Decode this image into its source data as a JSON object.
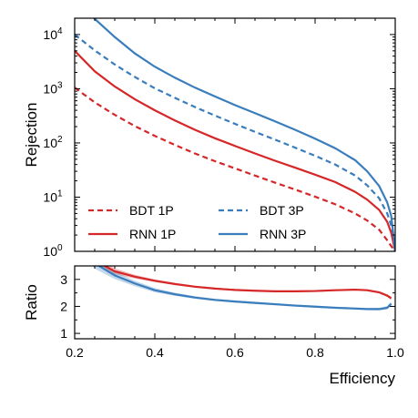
{
  "colors": {
    "1P": "#d62728",
    "3P": "#3a7dbd"
  },
  "chart_data": [
    {
      "type": "line",
      "role": "rejection",
      "ylabel": "Rejection",
      "yscale": "log",
      "xlim": [
        0.2,
        1.0
      ],
      "ylim": [
        1,
        20000
      ],
      "yticks": [
        {
          "value": 1,
          "base": "10",
          "exp": "0"
        },
        {
          "value": 10,
          "base": "10",
          "exp": "1"
        },
        {
          "value": 100,
          "base": "10",
          "exp": "2"
        },
        {
          "value": 1000,
          "base": "10",
          "exp": "3"
        },
        {
          "value": 10000,
          "base": "10",
          "exp": "4"
        }
      ],
      "legend": {
        "placement": "lower-left",
        "entries": [
          {
            "label": "BDT 1P",
            "series": "BDT 1P"
          },
          {
            "label": "BDT 3P",
            "series": "BDT 3P"
          },
          {
            "label": "RNN 1P",
            "series": "RNN 1P"
          },
          {
            "label": "RNN 3P",
            "series": "RNN 3P"
          }
        ]
      },
      "series": [
        {
          "name": "BDT 1P",
          "style": "dashed",
          "color_key": "1P",
          "x": [
            0.2,
            0.25,
            0.3,
            0.35,
            0.4,
            0.45,
            0.5,
            0.55,
            0.6,
            0.65,
            0.7,
            0.75,
            0.8,
            0.85,
            0.9,
            0.93,
            0.96,
            0.98,
            0.99,
            1.0
          ],
          "y": [
            1050,
            560,
            330,
            205,
            135,
            92,
            64,
            46,
            34,
            25,
            18.5,
            13.8,
            10.2,
            7.4,
            5.0,
            3.7,
            2.5,
            1.6,
            1.25,
            1.0
          ]
        },
        {
          "name": "BDT 3P",
          "style": "dashed",
          "color_key": "3P",
          "x": [
            0.2,
            0.25,
            0.3,
            0.35,
            0.4,
            0.45,
            0.5,
            0.55,
            0.6,
            0.65,
            0.7,
            0.75,
            0.8,
            0.85,
            0.9,
            0.93,
            0.96,
            0.98,
            0.99,
            1.0
          ],
          "y": [
            10000,
            5100,
            2800,
            1650,
            1020,
            680,
            460,
            320,
            225,
            160,
            115,
            82,
            58,
            40,
            25,
            16.5,
            9.5,
            5.0,
            3.0,
            1.0
          ]
        },
        {
          "name": "RNN 1P",
          "style": "solid",
          "color_key": "1P",
          "x": [
            0.2,
            0.25,
            0.3,
            0.35,
            0.4,
            0.45,
            0.5,
            0.55,
            0.6,
            0.65,
            0.7,
            0.75,
            0.8,
            0.85,
            0.9,
            0.93,
            0.96,
            0.98,
            0.99,
            1.0
          ],
          "y": [
            5000,
            2100,
            1100,
            640,
            400,
            260,
            175,
            122,
            88,
            64,
            47,
            35,
            26,
            19,
            12.5,
            9.0,
            5.8,
            3.5,
            2.2,
            1.0
          ]
        },
        {
          "name": "RNN 3P",
          "style": "solid",
          "color_key": "3P",
          "x": [
            0.2,
            0.25,
            0.3,
            0.35,
            0.4,
            0.45,
            0.5,
            0.55,
            0.6,
            0.65,
            0.7,
            0.75,
            0.8,
            0.85,
            0.9,
            0.93,
            0.96,
            0.98,
            0.99,
            1.0
          ],
          "y": [
            45000,
            19500,
            9000,
            4500,
            2550,
            1600,
            1050,
            720,
            500,
            355,
            250,
            175,
            120,
            80,
            48,
            30,
            16,
            8,
            4.5,
            1.0
          ]
        }
      ]
    },
    {
      "type": "line",
      "role": "ratio",
      "ylabel": "Ratio",
      "xlabel": "Efficiency",
      "xlim": [
        0.2,
        1.0
      ],
      "ylim": [
        0.8,
        3.5
      ],
      "xticks": [
        "0.2",
        "0.4",
        "0.6",
        "0.8",
        "1.0"
      ],
      "yticks": [
        "1",
        "2",
        "3"
      ],
      "series": [
        {
          "name": "1P",
          "color_key": "1P",
          "x": [
            0.2,
            0.25,
            0.3,
            0.35,
            0.4,
            0.45,
            0.5,
            0.55,
            0.6,
            0.65,
            0.7,
            0.75,
            0.8,
            0.85,
            0.9,
            0.93,
            0.96,
            0.98,
            0.99
          ],
          "y": [
            4.7,
            3.7,
            3.3,
            3.1,
            2.95,
            2.83,
            2.73,
            2.66,
            2.61,
            2.58,
            2.56,
            2.56,
            2.57,
            2.6,
            2.62,
            2.6,
            2.52,
            2.4,
            2.3
          ],
          "band": [
            0.35,
            0.18,
            0.11,
            0.07,
            0.05,
            0.04,
            0.035,
            0.03,
            0.03,
            0.03,
            0.03,
            0.03,
            0.03,
            0.03,
            0.03,
            0.03,
            0.04,
            0.05,
            0.06
          ]
        },
        {
          "name": "3P",
          "color_key": "3P",
          "x": [
            0.2,
            0.25,
            0.3,
            0.35,
            0.4,
            0.45,
            0.5,
            0.55,
            0.6,
            0.65,
            0.7,
            0.75,
            0.8,
            0.85,
            0.9,
            0.93,
            0.96,
            0.98,
            0.99
          ],
          "y": [
            4.6,
            3.6,
            3.15,
            2.85,
            2.6,
            2.45,
            2.33,
            2.24,
            2.18,
            2.13,
            2.08,
            2.03,
            1.99,
            1.95,
            1.92,
            1.9,
            1.9,
            1.95,
            2.1
          ],
          "band": [
            0.35,
            0.2,
            0.14,
            0.1,
            0.08,
            0.06,
            0.05,
            0.04,
            0.04,
            0.04,
            0.04,
            0.04,
            0.04,
            0.04,
            0.04,
            0.04,
            0.05,
            0.06,
            0.08
          ]
        }
      ]
    }
  ]
}
